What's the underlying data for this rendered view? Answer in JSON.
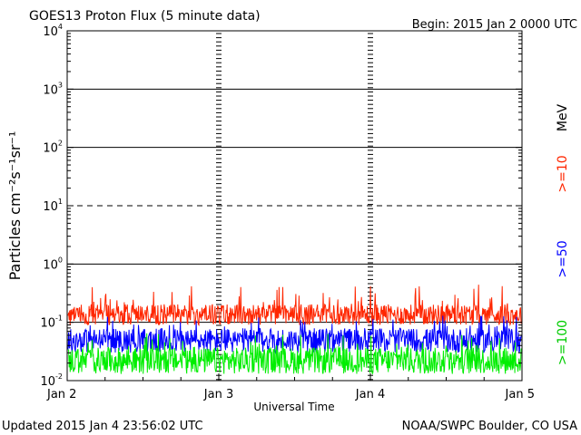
{
  "header": {
    "title": "GOES13 Proton Flux (5 minute data)",
    "begin": "Begin: 2015 Jan 2 0000 UTC"
  },
  "footer": {
    "updated": "Updated 2015 Jan  4 23:56:02 UTC",
    "source": "NOAA/SWPC Boulder, CO USA"
  },
  "side_labels": {
    "unit": "MeV",
    "thresholds": [
      {
        "text": ">=10",
        "color": "#ff2600"
      },
      {
        "text": ">=50",
        "color": "#0000ff"
      },
      {
        "text": ">=100",
        "color": "#00cc00"
      }
    ]
  },
  "chart_data": {
    "type": "line",
    "title": "GOES13 Proton Flux (5 minute data)",
    "xlabel": "Universal Time",
    "ylabel": "Particles cm⁻²s⁻¹sr⁻¹",
    "yscale": "log",
    "ylim": [
      0.01,
      10000
    ],
    "y_ticks": [
      {
        "base": "10",
        "exp": "-2",
        "value": 0.01
      },
      {
        "base": "10",
        "exp": "-1",
        "value": 0.1
      },
      {
        "base": "10",
        "exp": "0",
        "value": 1
      },
      {
        "base": "10",
        "exp": "1",
        "value": 10
      },
      {
        "base": "10",
        "exp": "2",
        "value": 100
      },
      {
        "base": "10",
        "exp": "3",
        "value": 1000
      },
      {
        "base": "10",
        "exp": "4",
        "value": 10000
      }
    ],
    "x_ticks": [
      "Jan 2",
      "Jan 3",
      "Jan 4",
      "Jan 5"
    ],
    "xlim": [
      "2015-01-02 00:00",
      "2015-01-05 00:00"
    ],
    "threshold_lines": [
      {
        "value": 10,
        "style": "dashed"
      }
    ],
    "grid": true,
    "series": [
      {
        "name": ">=10 MeV",
        "color": "#ff2600",
        "typical": 0.15,
        "min": 0.09,
        "max": 0.45
      },
      {
        "name": ">=50 MeV",
        "color": "#0000ff",
        "typical": 0.055,
        "min": 0.03,
        "max": 0.13
      },
      {
        "name": ">=100 MeV",
        "color": "#00ee00",
        "typical": 0.025,
        "min": 0.013,
        "max": 0.065
      }
    ]
  }
}
